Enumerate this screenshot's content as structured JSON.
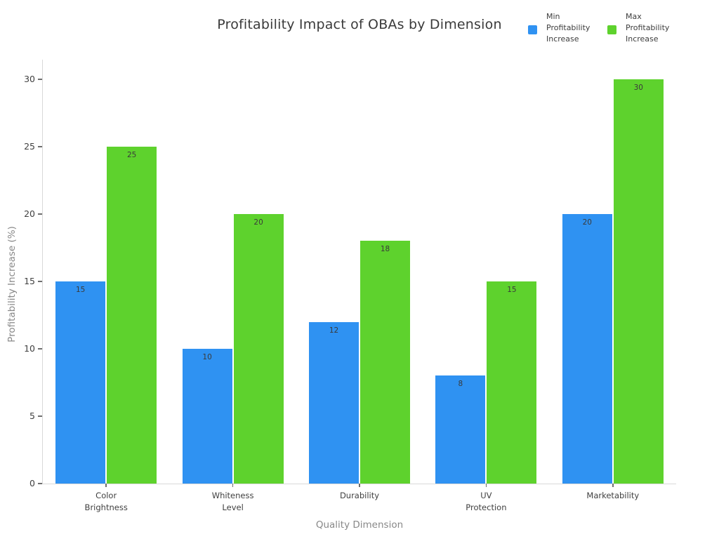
{
  "chart_data": {
    "type": "bar",
    "title": "Profitability Impact of OBAs by Dimension",
    "xlabel": "Quality Dimension",
    "ylabel": "Profitability Increase (%)",
    "categories": [
      "Color\nBrightness",
      "Whiteness\nLevel",
      "Durability",
      "UV\nProtection",
      "Marketability"
    ],
    "series": [
      {
        "name": "Min Profitability Increase",
        "legend_label": "Min\nProfitability\nIncrease",
        "color": "#2F92F2",
        "values": [
          15,
          10,
          12,
          8,
          20
        ]
      },
      {
        "name": "Max Profitability Increase",
        "legend_label": "Max\nProfitability\nIncrease",
        "color": "#5ED22D",
        "values": [
          25,
          20,
          18,
          15,
          30
        ]
      }
    ],
    "ylim": [
      0,
      30
    ],
    "yticks": [
      0,
      5,
      10,
      15,
      20,
      25,
      30
    ],
    "grid": false,
    "legend_position": "top-right",
    "value_labels": "inside-top",
    "colors": {
      "min_bar": "#2F92F2",
      "max_bar": "#5ED22D",
      "axis_line": "#d9d9d9",
      "tick_mark": "#6e6e6e",
      "title_text": "#3a3a3a",
      "axis_title_text": "#888888",
      "tick_label_text": "#404040"
    }
  }
}
